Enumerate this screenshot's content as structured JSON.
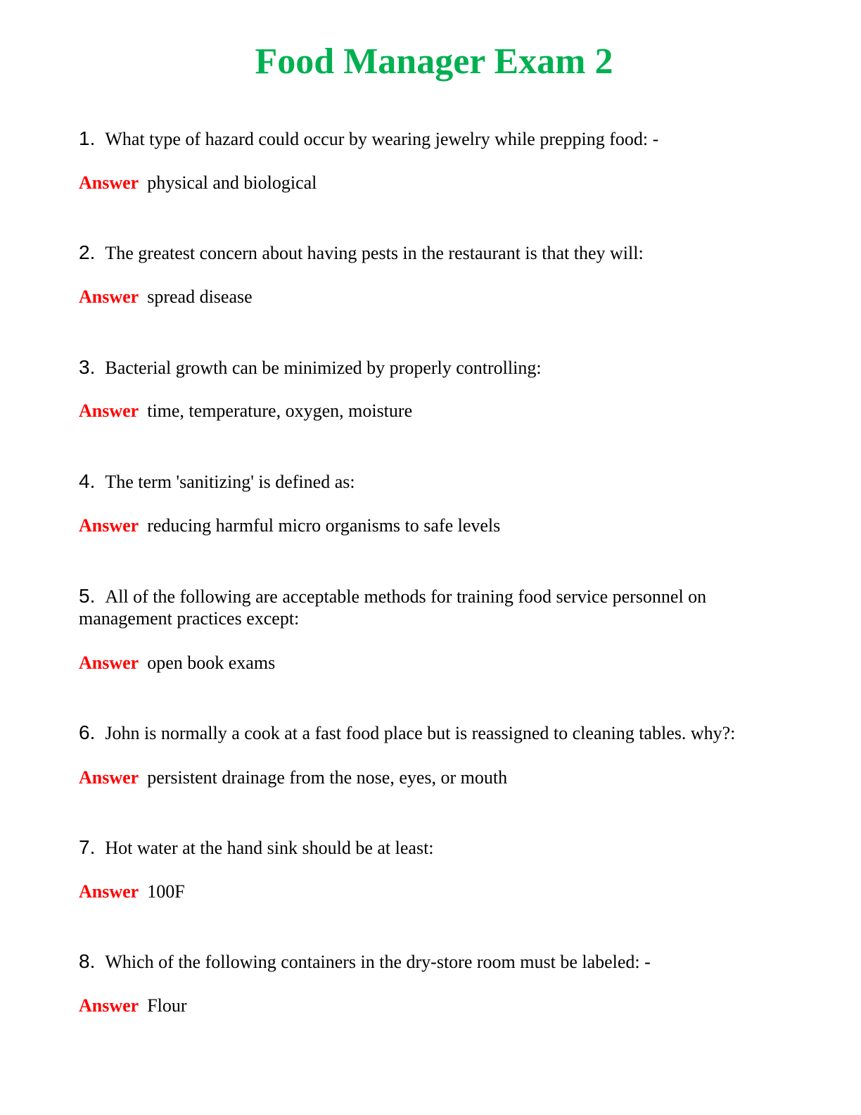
{
  "title": "Food Manager Exam 2",
  "answer_label": "Answer",
  "colors": {
    "title": "#00b050",
    "answer_label": "#ff0000"
  },
  "questions": [
    {
      "number": "1.",
      "text": "What type of hazard could occur by wearing jewelry while prepping food: -",
      "answer": "physical and biological"
    },
    {
      "number": "2.",
      "text": "The greatest concern about having pests in the restaurant is that they will:",
      "answer": "spread disease"
    },
    {
      "number": "3.",
      "text": "Bacterial growth can be minimized by properly controlling:",
      "answer": "time, temperature, oxygen, moisture"
    },
    {
      "number": "4.",
      "text": "The term 'sanitizing' is defined as:",
      "answer": "reducing harmful micro organisms to safe levels"
    },
    {
      "number": "5.",
      "text": "All of the following are acceptable methods for training food service personnel on management practices except:",
      "answer": "open book exams"
    },
    {
      "number": "6.",
      "text": "John is normally a cook at a fast food place but is reassigned to cleaning tables. why?:",
      "answer": "persistent drainage from the nose, eyes, or mouth"
    },
    {
      "number": "7.",
      "text": "Hot water at the hand sink should be at least:",
      "answer": "100F"
    },
    {
      "number": "8.",
      "text": "Which of the following containers in the dry-store room must be labeled: -",
      "answer": "Flour"
    }
  ]
}
